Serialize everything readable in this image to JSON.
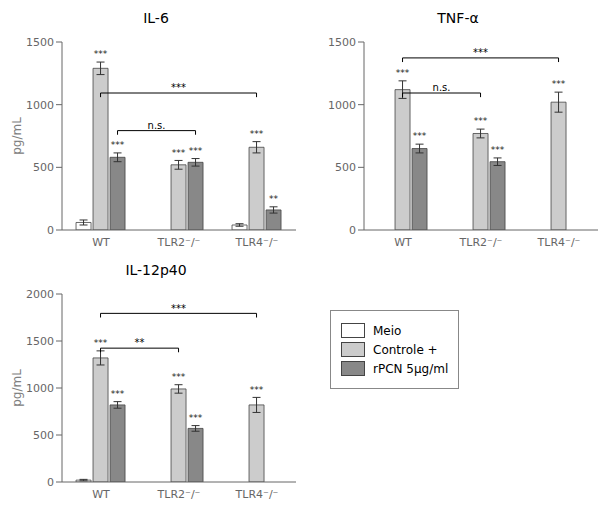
{
  "chart_data": [
    {
      "type": "bar",
      "title": "IL-6",
      "ylabel": "pg/mL",
      "categories": [
        "WT",
        "TLR2⁻/⁻",
        "TLR4⁻/⁻"
      ],
      "ylim": [
        0,
        1500
      ],
      "yticks": [
        0,
        500,
        1000,
        1500
      ],
      "grid": false,
      "legend": "upper left",
      "series": [
        {
          "name": "Meio",
          "color": "#ffffff",
          "values": [
            60,
            0,
            40
          ],
          "errors": [
            20,
            0,
            10
          ],
          "sig_labels": [
            null,
            null,
            null
          ]
        },
        {
          "name": "Controle +",
          "color": "#cccccc",
          "values": [
            1290,
            520,
            660
          ],
          "errors": [
            50,
            35,
            45
          ],
          "sig_labels": [
            "***",
            "***",
            "***"
          ]
        },
        {
          "name": "rPCN 5μg/ml",
          "color": "#888888",
          "values": [
            580,
            540,
            160
          ],
          "errors": [
            35,
            30,
            25
          ],
          "sig_labels": [
            "***",
            "***",
            "**"
          ]
        }
      ],
      "brackets": [
        {
          "series": "Controle +",
          "from": "WT",
          "to": "TLR4⁻/⁻",
          "y": 1060,
          "label": "***"
        },
        {
          "series": "rPCN 5μg/ml",
          "from": "WT",
          "to": "TLR2⁻/⁻",
          "y": 760,
          "label": "n.s."
        }
      ]
    },
    {
      "type": "bar",
      "title": "TNF-α",
      "categories": [
        "WT",
        "TLR2⁻/⁻",
        "TLR4⁻/⁻"
      ],
      "ylim": [
        0,
        1500
      ],
      "yticks": [
        0,
        500,
        1000,
        1500
      ],
      "grid": false,
      "legend": "upper left",
      "series": [
        {
          "name": "Meio",
          "color": "#ffffff",
          "values": [
            0,
            0,
            0
          ],
          "errors": [
            0,
            0,
            0
          ],
          "sig_labels": [
            null,
            null,
            null
          ]
        },
        {
          "name": "Controle +",
          "color": "#cccccc",
          "values": [
            1120,
            770,
            1020
          ],
          "errors": [
            70,
            35,
            80
          ],
          "sig_labels": [
            "***",
            "***",
            "***"
          ]
        },
        {
          "name": "rPCN 5μg/ml",
          "color": "#888888",
          "values": [
            650,
            545,
            0
          ],
          "errors": [
            35,
            30,
            0
          ],
          "sig_labels": [
            "***",
            "***",
            null
          ]
        }
      ],
      "brackets": [
        {
          "series": "Controle +",
          "from": "WT",
          "to": "TLR4⁻/⁻",
          "y": 1340,
          "label": "***"
        },
        {
          "series": "Controle +",
          "from": "WT",
          "to": "TLR2⁻/⁻",
          "y": 1060,
          "label": "n.s."
        }
      ]
    },
    {
      "type": "bar",
      "title": "IL-12p40",
      "ylabel": "pg/mL",
      "categories": [
        "WT",
        "TLR2⁻/⁻",
        "TLR4⁻/⁻"
      ],
      "ylim": [
        0,
        2000
      ],
      "yticks": [
        0,
        500,
        1000,
        1500,
        2000
      ],
      "grid": false,
      "legend": "upper left",
      "series": [
        {
          "name": "Meio",
          "color": "#ffffff",
          "values": [
            20,
            0,
            0
          ],
          "errors": [
            8,
            0,
            0
          ],
          "sig_labels": [
            null,
            null,
            null
          ]
        },
        {
          "name": "Controle +",
          "color": "#cccccc",
          "values": [
            1320,
            990,
            820
          ],
          "errors": [
            75,
            45,
            80
          ],
          "sig_labels": [
            "***",
            "***",
            "***"
          ]
        },
        {
          "name": "rPCN 5μg/ml",
          "color": "#888888",
          "values": [
            820,
            570,
            0
          ],
          "errors": [
            35,
            30,
            0
          ],
          "sig_labels": [
            "***",
            "***",
            null
          ]
        }
      ],
      "brackets": [
        {
          "series": "Controle +",
          "from": "WT",
          "to": "TLR4⁻/⁻",
          "y": 1750,
          "label": "***"
        },
        {
          "series": "Controle +",
          "from": "WT",
          "to": "TLR2⁻/⁻",
          "y": 1380,
          "label": "**"
        }
      ]
    }
  ]
}
